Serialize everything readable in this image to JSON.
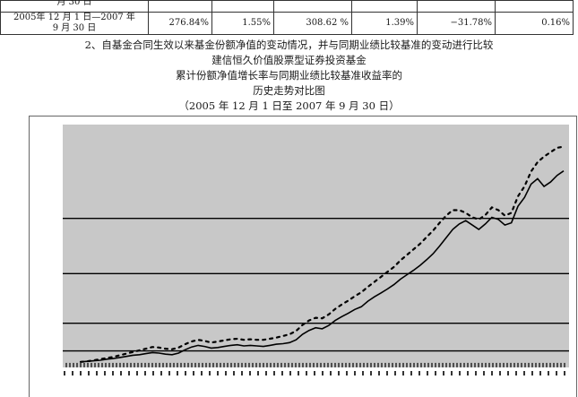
{
  "table": {
    "partial_row_label": "月 30 日",
    "row_label_line1": "2005年 12 月 1 日—2007 年",
    "row_label_line2": "9 月 30 日",
    "values": [
      "276.84%",
      "1.55%",
      "308.62 %",
      "1.39%",
      "−31.78%",
      "0.16%"
    ]
  },
  "section": {
    "heading": "2、自基金合同生效以来基金份额净值的变动情况，并与同期业绩比较基准的变动进行比较",
    "title_line1": "建信恒久价值股票型证券投资基金",
    "title_line2": "累计份额净值增长率与同期业绩比较基准收益率的",
    "title_line3": "历史走势对比图",
    "title_line4": "（2005 年 12 月 1 日至 2007 年 9 月 30 日）"
  },
  "chart_data": {
    "type": "line",
    "x_start": "2005-12-01",
    "x_end": "2007-09-30",
    "ylim": [
      -10,
      430
    ],
    "gridlines": [
      20,
      70,
      160,
      260
    ],
    "grid": true,
    "series": [
      {
        "line_style": "solid",
        "color": "#000000",
        "values": [
          0,
          1,
          2,
          3,
          5,
          6,
          8,
          10,
          12,
          13,
          15,
          17,
          16,
          14,
          13,
          16,
          22,
          27,
          30,
          28,
          25,
          26,
          28,
          30,
          31,
          29,
          30,
          29,
          28,
          30,
          32,
          33,
          35,
          40,
          50,
          57,
          62,
          60,
          66,
          75,
          82,
          88,
          95,
          100,
          110,
          118,
          125,
          132,
          140,
          150,
          158,
          166,
          175,
          185,
          196,
          210,
          225,
          240,
          250,
          256,
          248,
          240,
          250,
          262,
          258,
          248,
          252,
          282,
          298,
          322,
          332,
          318,
          326,
          338,
          346
        ]
      },
      {
        "line_style": "dashed",
        "color": "#000000",
        "values": [
          0,
          1,
          3,
          5,
          7,
          9,
          12,
          15,
          18,
          21,
          24,
          27,
          26,
          24,
          23,
          26,
          32,
          37,
          40,
          38,
          35,
          37,
          39,
          41,
          42,
          40,
          41,
          40,
          40,
          42,
          44,
          47,
          50,
          56,
          67,
          75,
          80,
          79,
          86,
          96,
          104,
          111,
          119,
          126,
          136,
          145,
          154,
          163,
          172,
          184,
          194,
          204,
          214,
          226,
          238,
          252,
          265,
          275,
          275,
          270,
          262,
          258,
          266,
          280,
          275,
          265,
          270,
          300,
          318,
          345,
          362,
          372,
          380,
          388,
          390
        ]
      }
    ]
  },
  "colors": {
    "plot_background": "#c8c8c8",
    "chart_background": "#ffffff",
    "gridline": "#000000",
    "series": "#000000"
  }
}
